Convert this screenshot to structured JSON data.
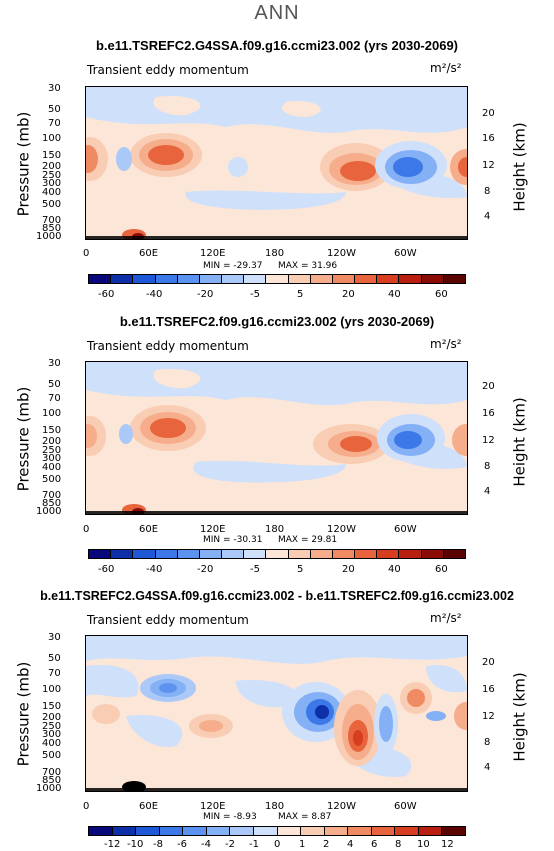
{
  "supertitle": "ANN",
  "panels": [
    {
      "title": "b.e11.TSREFC2.G4SSA.f09.g16.ccmi23.002 (yrs 2030-2069)",
      "subtitle_left": "Transient eddy momentum",
      "units": "m²/s²",
      "min_label": "MIN = -29.37",
      "max_label": "MAX =  31.96",
      "colorbar_labels": [
        "-60",
        "-40",
        "-20",
        "-5",
        "5",
        "20",
        "40",
        "60"
      ]
    },
    {
      "title": "b.e11.TSREFC2.f09.g16.ccmi23.002 (yrs 2030-2069)",
      "subtitle_left": "Transient eddy momentum",
      "units": "m²/s²",
      "min_label": "MIN = -30.31",
      "max_label": "MAX =  29.81",
      "colorbar_labels": [
        "-60",
        "-40",
        "-20",
        "-5",
        "5",
        "20",
        "40",
        "60"
      ]
    },
    {
      "title": "b.e11.TSREFC2.G4SSA.f09.g16.ccmi23.002 - b.e11.TSREFC2.f09.g16.ccmi23.002",
      "subtitle_left": "Transient eddy momentum",
      "units": "m²/s²",
      "min_label": "MIN =  -8.93",
      "max_label": "MAX =  8.87",
      "colorbar_labels": [
        "-12",
        "-10",
        "-8",
        "-6",
        "-4",
        "-2",
        "-1",
        "0",
        "1",
        "2",
        "4",
        "6",
        "8",
        "10",
        "12"
      ]
    }
  ],
  "axes": {
    "ylabel_left": "Pressure (mb)",
    "ylabel_right": "Height (km)",
    "pressure_ticks": [
      "30",
      "50",
      "70",
      "100",
      "150",
      "200",
      "250",
      "300",
      "400",
      "500",
      "700",
      "850",
      "1000"
    ],
    "height_ticks": [
      "20",
      "16",
      "12",
      "8",
      "4"
    ],
    "x_ticks": [
      "0",
      "60E",
      "120E",
      "180",
      "120W",
      "60W"
    ]
  },
  "colors": {
    "cbar_full": [
      "#08087a",
      "#0d2fa8",
      "#1f58d6",
      "#3c78e8",
      "#5d93f0",
      "#84b0f5",
      "#aac8f8",
      "#cfe0fb",
      "#fbe6d8",
      "#f9ccb4",
      "#f6ad8c",
      "#f08a63",
      "#e8643c",
      "#d73e20",
      "#b81f10",
      "#8a0c06",
      "#5a0303"
    ],
    "cbar_diff": [
      "#08087a",
      "#0d2fa8",
      "#1f58d6",
      "#3c78e8",
      "#5d93f0",
      "#84b0f5",
      "#aac8f8",
      "#cfe0fb",
      "#fbe6d8",
      "#f9ccb4",
      "#f6ad8c",
      "#f08a63",
      "#e8643c",
      "#d73e20",
      "#b81f10",
      "#5a0303"
    ]
  },
  "chart_data": [
    {
      "type": "heatmap",
      "variable": "Transient eddy momentum",
      "x": "longitude 0-360",
      "y": "pressure 30-1000 mb",
      "min": -29.37,
      "max": 31.96,
      "levels": [
        -60,
        -50,
        -40,
        -30,
        -20,
        -10,
        -5,
        -2,
        2,
        5,
        10,
        20,
        30,
        40,
        50,
        60
      ]
    },
    {
      "type": "heatmap",
      "variable": "Transient eddy momentum",
      "x": "longitude 0-360",
      "y": "pressure 30-1000 mb",
      "min": -30.31,
      "max": 29.81,
      "levels": [
        -60,
        -50,
        -40,
        -30,
        -20,
        -10,
        -5,
        -2,
        2,
        5,
        10,
        20,
        30,
        40,
        50,
        60
      ]
    },
    {
      "type": "heatmap",
      "variable": "Transient eddy momentum (difference)",
      "x": "longitude 0-360",
      "y": "pressure 30-1000 mb",
      "min": -8.93,
      "max": 8.87,
      "levels": [
        -12,
        -10,
        -8,
        -6,
        -4,
        -2,
        -1,
        0,
        1,
        2,
        4,
        6,
        8,
        10,
        12
      ]
    }
  ]
}
